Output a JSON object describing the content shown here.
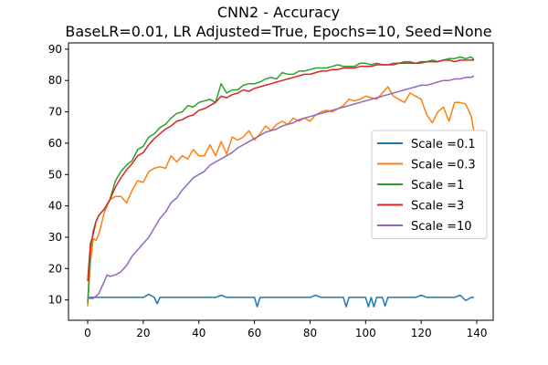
{
  "chart_data": {
    "type": "line",
    "title": "CNN2 - Accuracy",
    "subtitle": "BaseLR=0.01, LR Adjusted=True, Epochs=10, Seed=None",
    "xlabel": "",
    "ylabel": "",
    "xlim": [
      -6.9,
      145.9
    ],
    "ylim": [
      3.5,
      92
    ],
    "x_ticks": [
      0,
      20,
      40,
      60,
      80,
      100,
      120,
      140
    ],
    "y_ticks": [
      10,
      20,
      30,
      40,
      50,
      60,
      70,
      80,
      90
    ],
    "grid": false,
    "legend_position": "center-right",
    "series": [
      {
        "name": "Scale =0.1",
        "color": "#1f77b4",
        "x": [
          0,
          2,
          4,
          6,
          8,
          10,
          12,
          14,
          16,
          18,
          20,
          22,
          24,
          25,
          26,
          28,
          30,
          32,
          34,
          36,
          38,
          40,
          42,
          44,
          46,
          48,
          50,
          52,
          54,
          56,
          58,
          60,
          61,
          62,
          64,
          66,
          68,
          70,
          72,
          74,
          76,
          78,
          80,
          82,
          84,
          86,
          88,
          90,
          92,
          93,
          94,
          96,
          98,
          100,
          101,
          102,
          103,
          104,
          106,
          107,
          108,
          110,
          112,
          114,
          116,
          118,
          120,
          122,
          124,
          126,
          128,
          130,
          132,
          134,
          136,
          138,
          139
        ],
        "values": [
          10.8,
          10.8,
          10.8,
          10.8,
          10.8,
          10.8,
          10.8,
          10.8,
          10.8,
          10.8,
          10.8,
          11.8,
          10.8,
          8.8,
          10.8,
          10.8,
          10.8,
          10.8,
          10.8,
          10.8,
          10.8,
          10.8,
          10.8,
          10.8,
          10.8,
          11.5,
          10.8,
          10.8,
          10.8,
          10.8,
          10.8,
          10.8,
          7.8,
          10.8,
          10.8,
          10.8,
          10.8,
          10.8,
          10.8,
          10.8,
          10.8,
          10.8,
          10.8,
          11.5,
          10.8,
          10.8,
          10.8,
          10.8,
          10.8,
          7.8,
          10.8,
          10.8,
          10.8,
          10.8,
          7.8,
          10.8,
          7.8,
          10.8,
          10.8,
          8.0,
          10.8,
          10.8,
          10.8,
          10.8,
          10.8,
          10.8,
          11.5,
          10.8,
          10.8,
          10.8,
          10.8,
          10.8,
          10.8,
          11.5,
          9.8,
          10.8,
          10.8
        ]
      },
      {
        "name": "Scale =0.3",
        "color": "#ff7f0e",
        "x": [
          0,
          1,
          2,
          3,
          4,
          6,
          8,
          10,
          12,
          14,
          16,
          18,
          20,
          22,
          24,
          26,
          28,
          30,
          32,
          34,
          36,
          38,
          40,
          42,
          44,
          46,
          48,
          50,
          52,
          54,
          56,
          58,
          60,
          62,
          64,
          66,
          68,
          70,
          72,
          74,
          76,
          78,
          80,
          82,
          84,
          86,
          88,
          90,
          92,
          94,
          96,
          98,
          100,
          102,
          104,
          106,
          108,
          110,
          112,
          114,
          116,
          118,
          120,
          122,
          124,
          126,
          128,
          130,
          132,
          134,
          136,
          138,
          139
        ],
        "values": [
          8.0,
          22.0,
          29.5,
          29.0,
          31.0,
          38.0,
          42.0,
          43.0,
          43.0,
          41.0,
          45.0,
          48.0,
          47.5,
          51.0,
          52.0,
          52.5,
          52.0,
          56.0,
          54.0,
          56.0,
          55.0,
          58.0,
          56.0,
          56.0,
          59.5,
          56.0,
          60.5,
          56.5,
          62.0,
          61.0,
          62.0,
          64.0,
          61.0,
          63.0,
          65.5,
          64.0,
          66.0,
          67.0,
          66.0,
          68.0,
          67.0,
          68.0,
          67.0,
          69.0,
          70.0,
          70.5,
          70.0,
          71.0,
          72.0,
          74.0,
          73.5,
          74.0,
          75.0,
          74.5,
          74.0,
          76.0,
          78.0,
          75.0,
          74.0,
          73.0,
          76.0,
          75.0,
          74.0,
          69.0,
          66.5,
          70.0,
          71.5,
          67.0,
          73.0,
          73.0,
          72.5,
          68.5,
          63.5
        ]
      },
      {
        "name": "Scale =1",
        "color": "#2ca02c",
        "x": [
          0,
          1,
          2,
          3,
          4,
          6,
          8,
          10,
          12,
          14,
          16,
          18,
          20,
          22,
          24,
          26,
          28,
          30,
          32,
          34,
          36,
          38,
          40,
          42,
          44,
          46,
          48,
          50,
          52,
          54,
          56,
          58,
          60,
          62,
          64,
          66,
          68,
          70,
          72,
          74,
          76,
          78,
          80,
          82,
          84,
          86,
          88,
          90,
          92,
          94,
          96,
          98,
          100,
          102,
          104,
          106,
          108,
          110,
          112,
          114,
          116,
          118,
          120,
          122,
          124,
          126,
          128,
          130,
          132,
          134,
          136,
          138,
          139
        ],
        "values": [
          9.0,
          26.0,
          32.0,
          35.0,
          37.0,
          39.0,
          42.0,
          48.0,
          51.0,
          53.0,
          54.5,
          58.0,
          59.0,
          62.0,
          63.0,
          65.0,
          66.0,
          68.0,
          69.5,
          70.0,
          72.0,
          71.5,
          73.0,
          73.5,
          74.0,
          73.0,
          79.0,
          76.0,
          77.0,
          77.0,
          78.5,
          79.0,
          79.0,
          79.5,
          80.5,
          81.0,
          80.5,
          82.5,
          82.0,
          82.0,
          83.0,
          83.0,
          83.5,
          84.0,
          84.0,
          84.0,
          84.5,
          85.0,
          84.5,
          84.5,
          84.5,
          85.5,
          85.5,
          85.0,
          85.5,
          85.0,
          85.0,
          85.5,
          85.5,
          86.0,
          86.0,
          85.5,
          85.5,
          86.0,
          86.5,
          86.0,
          86.5,
          87.0,
          87.0,
          87.5,
          87.0,
          87.5,
          86.5
        ]
      },
      {
        "name": "Scale =3",
        "color": "#d62728",
        "x": [
          0,
          1,
          2,
          3,
          4,
          6,
          8,
          10,
          12,
          14,
          16,
          18,
          20,
          22,
          24,
          26,
          28,
          30,
          32,
          34,
          36,
          38,
          40,
          42,
          44,
          46,
          48,
          50,
          52,
          54,
          56,
          58,
          60,
          62,
          64,
          66,
          68,
          70,
          72,
          74,
          76,
          78,
          80,
          82,
          84,
          86,
          88,
          90,
          92,
          94,
          96,
          98,
          100,
          102,
          104,
          106,
          108,
          110,
          112,
          114,
          116,
          118,
          120,
          122,
          124,
          126,
          128,
          130,
          132,
          134,
          136,
          138,
          139
        ],
        "values": [
          16.0,
          28.0,
          31.0,
          35.0,
          37.0,
          39.0,
          42.0,
          46.0,
          49.0,
          51.5,
          53.5,
          56.0,
          57.0,
          59.5,
          61.5,
          63.0,
          64.5,
          65.5,
          67.0,
          67.5,
          68.5,
          69.0,
          70.5,
          71.0,
          72.0,
          73.0,
          75.0,
          74.5,
          75.5,
          76.0,
          77.0,
          76.5,
          77.5,
          78.0,
          78.5,
          79.0,
          79.5,
          80.0,
          80.5,
          81.0,
          81.5,
          82.0,
          82.0,
          82.5,
          83.0,
          83.0,
          83.5,
          83.5,
          84.0,
          84.0,
          84.0,
          84.5,
          84.5,
          84.5,
          85.0,
          85.0,
          85.0,
          85.0,
          85.5,
          85.5,
          85.5,
          85.5,
          86.0,
          86.0,
          86.0,
          86.0,
          86.5,
          86.5,
          86.0,
          86.5,
          86.5,
          86.5,
          86.5
        ]
      },
      {
        "name": "Scale =10",
        "color": "#9467bd",
        "x": [
          0,
          2,
          4,
          6,
          7,
          8,
          10,
          12,
          14,
          16,
          18,
          20,
          22,
          24,
          26,
          28,
          30,
          32,
          34,
          36,
          38,
          40,
          42,
          44,
          46,
          48,
          50,
          52,
          54,
          56,
          58,
          60,
          62,
          64,
          66,
          68,
          70,
          72,
          74,
          76,
          78,
          80,
          82,
          84,
          86,
          88,
          90,
          92,
          94,
          96,
          98,
          100,
          102,
          104,
          106,
          108,
          110,
          112,
          114,
          116,
          118,
          120,
          122,
          124,
          126,
          128,
          130,
          132,
          134,
          136,
          138,
          139
        ],
        "values": [
          10.5,
          10.5,
          12.0,
          16.0,
          18.0,
          17.5,
          18.0,
          19.0,
          21.0,
          24.0,
          26.0,
          28.0,
          30.0,
          33.0,
          36.0,
          38.0,
          41.0,
          42.5,
          45.0,
          47.0,
          49.0,
          50.0,
          51.0,
          53.0,
          54.0,
          55.0,
          56.0,
          57.0,
          58.5,
          59.5,
          60.5,
          61.5,
          62.5,
          63.5,
          64.0,
          64.5,
          65.5,
          66.0,
          66.5,
          67.5,
          68.0,
          68.5,
          69.0,
          69.5,
          70.0,
          70.5,
          71.0,
          71.5,
          72.0,
          72.5,
          73.0,
          73.5,
          74.0,
          74.5,
          75.0,
          75.5,
          76.0,
          76.5,
          77.0,
          77.5,
          78.0,
          78.5,
          78.5,
          79.0,
          79.5,
          80.0,
          80.0,
          80.5,
          80.5,
          81.0,
          81.0,
          81.5
        ]
      }
    ]
  }
}
